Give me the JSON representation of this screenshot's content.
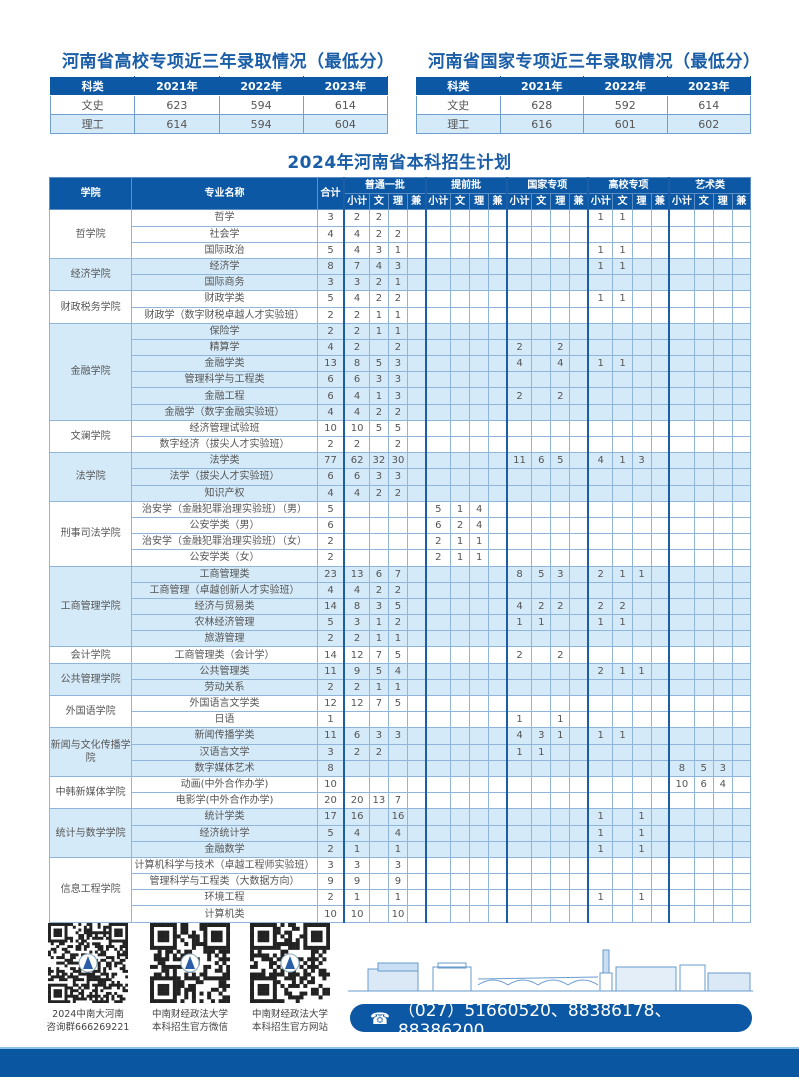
{
  "left_table": {
    "title": "河南省高校专项近三年录取情况（最低分）",
    "headers": [
      "科类",
      "2021年",
      "2022年",
      "2023年"
    ],
    "rows": [
      [
        "文史",
        "623",
        "594",
        "614"
      ],
      [
        "理工",
        "614",
        "594",
        "604"
      ]
    ]
  },
  "right_table": {
    "title": "河南省国家专项近三年录取情况（最低分）",
    "headers": [
      "科类",
      "2021年",
      "2022年",
      "2023年"
    ],
    "rows": [
      [
        "文史",
        "628",
        "592",
        "614"
      ],
      [
        "理工",
        "616",
        "601",
        "602"
      ]
    ]
  },
  "plan": {
    "title": "2024年河南省本科招生计划",
    "headers": {
      "college": "学院",
      "major": "专业名称",
      "total": "合计",
      "groups": [
        "普通一批",
        "提前批",
        "国家专项",
        "高校专项",
        "艺术类"
      ],
      "sub": [
        "小计",
        "文",
        "理",
        "兼"
      ]
    },
    "colleges": [
      {
        "name": "哲学院",
        "majors": [
          {
            "name": "哲学",
            "total": "3",
            "g": [
              [
                "2",
                "2"
              ],
              [],
              [],
              [
                "1",
                "1"
              ],
              []
            ]
          },
          {
            "name": "社会学",
            "total": "4",
            "g": [
              [
                "4",
                "2",
                "2"
              ],
              [],
              [],
              [],
              []
            ]
          },
          {
            "name": "国际政治",
            "total": "5",
            "g": [
              [
                "4",
                "3",
                "1"
              ],
              [],
              [],
              [
                "1",
                "1"
              ],
              []
            ]
          }
        ]
      },
      {
        "name": "经济学院",
        "majors": [
          {
            "name": "经济学",
            "total": "8",
            "g": [
              [
                "7",
                "4",
                "3"
              ],
              [],
              [],
              [
                "1",
                "1"
              ],
              []
            ]
          },
          {
            "name": "国际商务",
            "total": "3",
            "g": [
              [
                "3",
                "2",
                "1"
              ],
              [],
              [],
              [],
              []
            ]
          }
        ]
      },
      {
        "name": "财政税务学院",
        "majors": [
          {
            "name": "财政学类",
            "total": "5",
            "g": [
              [
                "4",
                "2",
                "2"
              ],
              [],
              [],
              [
                "1",
                "1"
              ],
              []
            ]
          },
          {
            "name": "财政学（数字财税卓越人才实验班）",
            "total": "2",
            "g": [
              [
                "2",
                "1",
                "1"
              ],
              [],
              [],
              [],
              []
            ]
          }
        ]
      },
      {
        "name": "金融学院",
        "majors": [
          {
            "name": "保险学",
            "total": "2",
            "g": [
              [
                "2",
                "1",
                "1"
              ],
              [],
              [],
              [],
              []
            ]
          },
          {
            "name": "精算学",
            "total": "4",
            "g": [
              [
                "2",
                "",
                "2"
              ],
              [],
              [
                "2",
                "",
                "2"
              ],
              [],
              []
            ]
          },
          {
            "name": "金融学类",
            "total": "13",
            "g": [
              [
                "8",
                "5",
                "3"
              ],
              [],
              [
                "4",
                "",
                "4"
              ],
              [
                "1",
                "1"
              ],
              []
            ]
          },
          {
            "name": "管理科学与工程类",
            "total": "6",
            "g": [
              [
                "6",
                "3",
                "3"
              ],
              [],
              [],
              [],
              []
            ]
          },
          {
            "name": "金融工程",
            "total": "6",
            "g": [
              [
                "4",
                "1",
                "3"
              ],
              [],
              [
                "2",
                "",
                "2"
              ],
              [],
              []
            ]
          },
          {
            "name": "金融学（数字金融实验班）",
            "total": "4",
            "g": [
              [
                "4",
                "2",
                "2"
              ],
              [],
              [],
              [],
              []
            ]
          }
        ]
      },
      {
        "name": "文澜学院",
        "majors": [
          {
            "name": "经济管理试验班",
            "total": "10",
            "g": [
              [
                "10",
                "5",
                "5"
              ],
              [],
              [],
              [],
              []
            ]
          },
          {
            "name": "数字经济（拔尖人才实验班）",
            "total": "2",
            "g": [
              [
                "2",
                "",
                "2"
              ],
              [],
              [],
              [],
              []
            ]
          }
        ]
      },
      {
        "name": "法学院",
        "majors": [
          {
            "name": "法学类",
            "total": "77",
            "g": [
              [
                "62",
                "32",
                "30"
              ],
              [],
              [
                "11",
                "6",
                "5"
              ],
              [
                "4",
                "1",
                "3"
              ],
              []
            ]
          },
          {
            "name": "法学（拔尖人才实验班）",
            "total": "6",
            "g": [
              [
                "6",
                "3",
                "3"
              ],
              [],
              [],
              [],
              []
            ]
          },
          {
            "name": "知识产权",
            "total": "4",
            "g": [
              [
                "4",
                "2",
                "2"
              ],
              [],
              [],
              [],
              []
            ]
          }
        ]
      },
      {
        "name": "刑事司法学院",
        "majors": [
          {
            "name": "治安学（金融犯罪治理实验班）（男）",
            "total": "5",
            "g": [
              [],
              [
                "5",
                "1",
                "4"
              ],
              [],
              [],
              []
            ]
          },
          {
            "name": "公安学类（男）",
            "total": "6",
            "g": [
              [],
              [
                "6",
                "2",
                "4"
              ],
              [],
              [],
              []
            ]
          },
          {
            "name": "治安学（金融犯罪治理实验班）（女）",
            "total": "2",
            "g": [
              [],
              [
                "2",
                "1",
                "1"
              ],
              [],
              [],
              []
            ]
          },
          {
            "name": "公安学类（女）",
            "total": "2",
            "g": [
              [],
              [
                "2",
                "1",
                "1"
              ],
              [],
              [],
              []
            ]
          }
        ]
      },
      {
        "name": "工商管理学院",
        "majors": [
          {
            "name": "工商管理类",
            "total": "23",
            "g": [
              [
                "13",
                "6",
                "7"
              ],
              [],
              [
                "8",
                "5",
                "3"
              ],
              [
                "2",
                "1",
                "1"
              ],
              []
            ]
          },
          {
            "name": "工商管理（卓越创新人才实验班）",
            "total": "4",
            "g": [
              [
                "4",
                "2",
                "2"
              ],
              [],
              [],
              [],
              []
            ]
          },
          {
            "name": "经济与贸易类",
            "total": "14",
            "g": [
              [
                "8",
                "3",
                "5"
              ],
              [],
              [
                "4",
                "2",
                "2"
              ],
              [
                "2",
                "2"
              ],
              []
            ]
          },
          {
            "name": "农林经济管理",
            "total": "5",
            "g": [
              [
                "3",
                "1",
                "2"
              ],
              [],
              [
                "1",
                "1"
              ],
              [
                "1",
                "1"
              ],
              []
            ]
          },
          {
            "name": "旅游管理",
            "total": "2",
            "g": [
              [
                "2",
                "1",
                "1"
              ],
              [],
              [],
              [],
              []
            ]
          }
        ]
      },
      {
        "name": "会计学院",
        "majors": [
          {
            "name": "工商管理类（会计学）",
            "total": "14",
            "g": [
              [
                "12",
                "7",
                "5"
              ],
              [],
              [
                "2",
                "",
                "2"
              ],
              [],
              []
            ]
          }
        ]
      },
      {
        "name": "公共管理学院",
        "majors": [
          {
            "name": "公共管理类",
            "total": "11",
            "g": [
              [
                "9",
                "5",
                "4"
              ],
              [],
              [],
              [
                "2",
                "1",
                "1"
              ],
              []
            ]
          },
          {
            "name": "劳动关系",
            "total": "2",
            "g": [
              [
                "2",
                "1",
                "1"
              ],
              [],
              [],
              [],
              []
            ]
          }
        ]
      },
      {
        "name": "外国语学院",
        "majors": [
          {
            "name": "外国语言文学类",
            "total": "12",
            "g": [
              [
                "12",
                "7",
                "5"
              ],
              [],
              [],
              [],
              []
            ]
          },
          {
            "name": "日语",
            "total": "1",
            "g": [
              [],
              [],
              [
                "1",
                "",
                "1"
              ],
              [],
              []
            ]
          }
        ]
      },
      {
        "name": "新闻与文化传播学院",
        "majors": [
          {
            "name": "新闻传播学类",
            "total": "11",
            "g": [
              [
                "6",
                "3",
                "3"
              ],
              [],
              [
                "4",
                "3",
                "1"
              ],
              [
                "1",
                "1"
              ],
              []
            ]
          },
          {
            "name": "汉语言文学",
            "total": "3",
            "g": [
              [
                "2",
                "2"
              ],
              [],
              [
                "1",
                "1"
              ],
              [],
              []
            ]
          },
          {
            "name": "数字媒体艺术",
            "total": "8",
            "g": [
              [],
              [],
              [],
              [],
              [
                "8",
                "5",
                "3"
              ]
            ]
          }
        ]
      },
      {
        "name": "中韩新媒体学院",
        "majors": [
          {
            "name": "动画(中外合作办学)",
            "total": "10",
            "g": [
              [],
              [],
              [],
              [],
              [
                "10",
                "6",
                "4"
              ]
            ]
          },
          {
            "name": "电影学(中外合作办学)",
            "total": "20",
            "g": [
              [
                "20",
                "13",
                "7"
              ],
              [],
              [],
              [],
              []
            ]
          }
        ]
      },
      {
        "name": "统计与数学学院",
        "majors": [
          {
            "name": "统计学类",
            "total": "17",
            "g": [
              [
                "16",
                "",
                "16"
              ],
              [],
              [],
              [
                "1",
                "",
                "1"
              ],
              []
            ]
          },
          {
            "name": "经济统计学",
            "total": "5",
            "g": [
              [
                "4",
                "",
                "4"
              ],
              [],
              [],
              [
                "1",
                "",
                "1"
              ],
              []
            ]
          },
          {
            "name": "金融数学",
            "total": "2",
            "g": [
              [
                "1",
                "",
                "1"
              ],
              [],
              [],
              [
                "1",
                "",
                "1"
              ],
              []
            ]
          }
        ]
      },
      {
        "name": "信息工程学院",
        "majors": [
          {
            "name": "计算机科学与技术（卓越工程师实验班）",
            "total": "3",
            "g": [
              [
                "3",
                "",
                "3"
              ],
              [],
              [],
              [],
              []
            ]
          },
          {
            "name": "管理科学与工程类（大数据方向）",
            "total": "9",
            "g": [
              [
                "9",
                "",
                "9"
              ],
              [],
              [],
              [],
              []
            ]
          },
          {
            "name": "环境工程",
            "total": "2",
            "g": [
              [
                "1",
                "",
                "1"
              ],
              [],
              [],
              [
                "1",
                "",
                "1"
              ],
              []
            ]
          },
          {
            "name": "计算机类",
            "total": "10",
            "g": [
              [
                "10",
                "",
                "10"
              ],
              [],
              [],
              [],
              []
            ]
          }
        ]
      }
    ]
  },
  "footer": {
    "qr_captions": [
      [
        "2024中南大河南",
        "咨询群666269221"
      ],
      [
        "中南财经政法大学",
        "本科招生官方微信"
      ],
      [
        "中南财经政法大学",
        "本科招生官方网站"
      ]
    ],
    "phone_icon": "telephone-icon",
    "phone": "（027）51660520、88386178、88386200"
  },
  "colors": {
    "primary": "#0d58a4",
    "row_alt": "#d5eaf8",
    "title": "#1a5ea8"
  }
}
